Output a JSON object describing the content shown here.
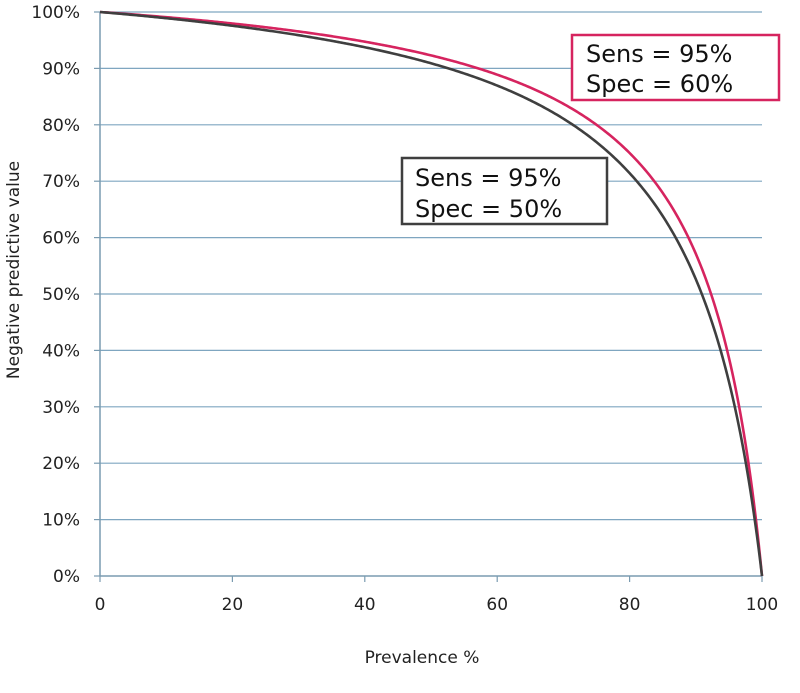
{
  "chart_data": {
    "type": "line",
    "title": "",
    "xlabel": "Prevalence %",
    "ylabel": "Negative predictive value",
    "xlim": [
      0,
      100
    ],
    "ylim": [
      0,
      100
    ],
    "x_ticks": [
      0,
      20,
      40,
      60,
      80,
      100
    ],
    "x_tick_labels": [
      "0",
      "20",
      "40",
      "60",
      "80",
      "100"
    ],
    "y_ticks": [
      0,
      10,
      20,
      30,
      40,
      50,
      60,
      70,
      80,
      90,
      100
    ],
    "y_tick_labels": [
      "0%",
      "10%",
      "20%",
      "30%",
      "40%",
      "50%",
      "60%",
      "70%",
      "80%",
      "90%",
      "100%"
    ],
    "grid": "horizontal",
    "series": [
      {
        "color": "#d6245f",
        "sens": 0.95,
        "spec": 0.6,
        "annotation": [
          "Sens = 95%",
          "Spec = 60%"
        ],
        "x": [
          0,
          5,
          10,
          20,
          30,
          40,
          50,
          60,
          70,
          75,
          80,
          85,
          90,
          93,
          95,
          97,
          98,
          99,
          100
        ],
        "y": [
          100,
          99.56,
          99.09,
          97.96,
          96.55,
          94.74,
          92.31,
          88.89,
          83.72,
          80.0,
          75.0,
          67.92,
          54.55,
          44.44,
          36.36,
          23.08,
          16.0,
          7.84,
          0
        ]
      },
      {
        "color": "#3f3f3f",
        "sens": 0.95,
        "spec": 0.5,
        "annotation": [
          "Sens = 95%",
          "Spec = 50%"
        ],
        "x": [
          0,
          5,
          10,
          20,
          30,
          40,
          50,
          60,
          70,
          75,
          80,
          85,
          90,
          93,
          95,
          97,
          98,
          99,
          100
        ],
        "y": [
          100,
          99.47,
          98.9,
          97.56,
          95.89,
          93.75,
          90.91,
          86.96,
          81.08,
          76.92,
          71.43,
          63.83,
          50.0,
          39.62,
          31.25,
          18.87,
          13.04,
          6.35,
          0
        ]
      }
    ]
  }
}
